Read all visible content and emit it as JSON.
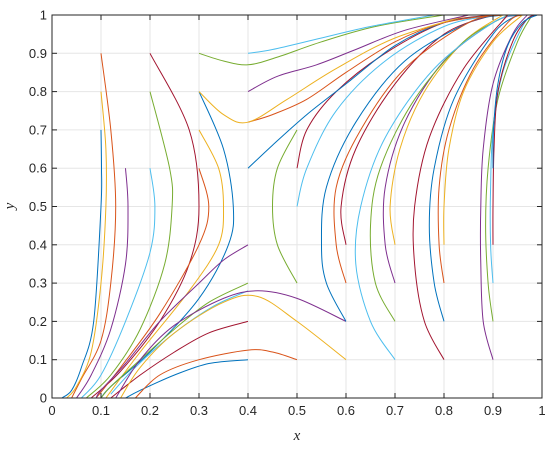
{
  "chart_data": {
    "type": "line",
    "title": "",
    "xlabel": "x",
    "ylabel": "y",
    "xlim": [
      0,
      1
    ],
    "ylim": [
      0,
      1
    ],
    "grid": true,
    "legend": "none",
    "x_ticks": [
      "0",
      "0.1",
      "0.2",
      "0.3",
      "0.4",
      "0.5",
      "0.6",
      "0.7",
      "0.8",
      "0.9",
      "1"
    ],
    "y_ticks": [
      "0",
      "0.1",
      "0.2",
      "0.3",
      "0.4",
      "0.5",
      "0.6",
      "0.7",
      "0.8",
      "0.9",
      "1"
    ],
    "colors": [
      "#0072BD",
      "#D95319",
      "#EDB120",
      "#7E2F8E",
      "#77AC30",
      "#4DBEEE",
      "#A2142F"
    ],
    "series": [
      {
        "values": [
          [
            0.1,
            0.7
          ],
          [
            0.101,
            0.6
          ],
          [
            0.1,
            0.5
          ],
          [
            0.085,
            0.2
          ],
          [
            0.06,
            0.08
          ],
          [
            0.04,
            0.02
          ],
          [
            0.02,
            0.0
          ]
        ]
      },
      {
        "values": [
          [
            0.1,
            0.9
          ],
          [
            0.12,
            0.7
          ],
          [
            0.13,
            0.5
          ],
          [
            0.12,
            0.3
          ],
          [
            0.1,
            0.15
          ],
          [
            0.06,
            0.05
          ],
          [
            0.04,
            0.0
          ]
        ]
      },
      {
        "values": [
          [
            0.1,
            0.8
          ],
          [
            0.11,
            0.65
          ],
          [
            0.11,
            0.5
          ],
          [
            0.1,
            0.3
          ],
          [
            0.08,
            0.12
          ],
          [
            0.05,
            0.03
          ],
          [
            0.03,
            0.0
          ]
        ]
      },
      {
        "values": [
          [
            0.15,
            0.6
          ],
          [
            0.155,
            0.5
          ],
          [
            0.15,
            0.35
          ],
          [
            0.12,
            0.18
          ],
          [
            0.08,
            0.06
          ],
          [
            0.05,
            0.0
          ]
        ]
      },
      {
        "values": [
          [
            0.2,
            0.8
          ],
          [
            0.24,
            0.6
          ],
          [
            0.245,
            0.5
          ],
          [
            0.23,
            0.35
          ],
          [
            0.18,
            0.18
          ],
          [
            0.12,
            0.06
          ],
          [
            0.07,
            0.0
          ]
        ]
      },
      {
        "values": [
          [
            0.2,
            0.6
          ],
          [
            0.21,
            0.5
          ],
          [
            0.2,
            0.38
          ],
          [
            0.15,
            0.2
          ],
          [
            0.1,
            0.06
          ],
          [
            0.06,
            0.0
          ]
        ]
      },
      {
        "values": [
          [
            0.2,
            0.9
          ],
          [
            0.28,
            0.7
          ],
          [
            0.3,
            0.5
          ],
          [
            0.28,
            0.35
          ],
          [
            0.22,
            0.2
          ],
          [
            0.14,
            0.07
          ],
          [
            0.08,
            0.0
          ]
        ]
      },
      {
        "values": [
          [
            0.3,
            0.8
          ],
          [
            0.35,
            0.65
          ],
          [
            0.37,
            0.5
          ],
          [
            0.36,
            0.4
          ],
          [
            0.3,
            0.26
          ],
          [
            0.2,
            0.12
          ],
          [
            0.12,
            0.03
          ],
          [
            0.1,
            0.0
          ]
        ]
      },
      {
        "values": [
          [
            0.3,
            0.6
          ],
          [
            0.32,
            0.5
          ],
          [
            0.3,
            0.4
          ],
          [
            0.22,
            0.22
          ],
          [
            0.14,
            0.08
          ],
          [
            0.09,
            0.0
          ]
        ]
      },
      {
        "values": [
          [
            0.3,
            0.7
          ],
          [
            0.34,
            0.6
          ],
          [
            0.35,
            0.5
          ],
          [
            0.34,
            0.4
          ],
          [
            0.28,
            0.28
          ],
          [
            0.18,
            0.12
          ],
          [
            0.11,
            0.0
          ]
        ]
      },
      {
        "values": [
          [
            0.4,
            0.4
          ],
          [
            0.35,
            0.36
          ],
          [
            0.3,
            0.3
          ],
          [
            0.22,
            0.2
          ],
          [
            0.15,
            0.09
          ],
          [
            0.1,
            0.02
          ],
          [
            0.09,
            0.0
          ]
        ]
      },
      {
        "values": [
          [
            0.4,
            0.3
          ],
          [
            0.32,
            0.25
          ],
          [
            0.25,
            0.18
          ],
          [
            0.18,
            0.1
          ],
          [
            0.12,
            0.03
          ],
          [
            0.1,
            0.0
          ]
        ]
      },
      {
        "values": [
          [
            0.4,
            0.28
          ],
          [
            0.33,
            0.24
          ],
          [
            0.25,
            0.17
          ],
          [
            0.17,
            0.08
          ],
          [
            0.12,
            0.01
          ]
        ]
      },
      {
        "values": [
          [
            0.4,
            0.2
          ],
          [
            0.32,
            0.17
          ],
          [
            0.25,
            0.12
          ],
          [
            0.18,
            0.06
          ],
          [
            0.12,
            0.0
          ]
        ]
      },
      {
        "values": [
          [
            0.4,
            0.1
          ],
          [
            0.32,
            0.09
          ],
          [
            0.25,
            0.06
          ],
          [
            0.18,
            0.02
          ],
          [
            0.15,
            0.0
          ]
        ]
      },
      {
        "values": [
          [
            0.5,
            0.1
          ],
          [
            0.45,
            0.12
          ],
          [
            0.4,
            0.125
          ],
          [
            0.3,
            0.1
          ],
          [
            0.22,
            0.06
          ],
          [
            0.17,
            0.0
          ]
        ]
      },
      {
        "values": [
          [
            0.6,
            0.1
          ],
          [
            0.5,
            0.2
          ],
          [
            0.42,
            0.265
          ],
          [
            0.35,
            0.25
          ],
          [
            0.25,
            0.17
          ],
          [
            0.18,
            0.08
          ],
          [
            0.14,
            0.0
          ]
        ]
      },
      {
        "values": [
          [
            0.6,
            0.2
          ],
          [
            0.5,
            0.26
          ],
          [
            0.42,
            0.28
          ],
          [
            0.35,
            0.26
          ],
          [
            0.25,
            0.19
          ],
          [
            0.18,
            0.1
          ],
          [
            0.13,
            0.0
          ]
        ]
      },
      {
        "values": [
          [
            0.5,
            0.3
          ],
          [
            0.46,
            0.4
          ],
          [
            0.45,
            0.5
          ],
          [
            0.46,
            0.6
          ],
          [
            0.5,
            0.7
          ]
        ]
      },
      {
        "values": [
          [
            0.5,
            0.5
          ],
          [
            0.52,
            0.6
          ],
          [
            0.58,
            0.75
          ],
          [
            0.68,
            0.88
          ],
          [
            0.8,
            0.97
          ],
          [
            0.9,
            1.0
          ]
        ]
      },
      {
        "values": [
          [
            0.5,
            0.6
          ],
          [
            0.52,
            0.7
          ],
          [
            0.58,
            0.8
          ],
          [
            0.68,
            0.9
          ],
          [
            0.8,
            0.98
          ],
          [
            0.9,
            1.0
          ]
        ]
      },
      {
        "values": [
          [
            0.4,
            0.6
          ],
          [
            0.45,
            0.66
          ],
          [
            0.52,
            0.74
          ],
          [
            0.6,
            0.82
          ],
          [
            0.7,
            0.92
          ],
          [
            0.8,
            0.98
          ],
          [
            0.9,
            1.0
          ]
        ]
      },
      {
        "values": [
          [
            0.4,
            0.72
          ],
          [
            0.45,
            0.74
          ],
          [
            0.52,
            0.78
          ],
          [
            0.6,
            0.85
          ],
          [
            0.7,
            0.93
          ],
          [
            0.8,
            0.98
          ],
          [
            0.9,
            1.0
          ]
        ]
      },
      {
        "values": [
          [
            0.3,
            0.8
          ],
          [
            0.35,
            0.74
          ],
          [
            0.4,
            0.72
          ],
          [
            0.48,
            0.78
          ],
          [
            0.58,
            0.86
          ],
          [
            0.7,
            0.94
          ],
          [
            0.85,
            1.0
          ]
        ]
      },
      {
        "values": [
          [
            0.4,
            0.8
          ],
          [
            0.46,
            0.84
          ],
          [
            0.54,
            0.87
          ],
          [
            0.62,
            0.91
          ],
          [
            0.72,
            0.96
          ],
          [
            0.85,
            1.0
          ]
        ]
      },
      {
        "values": [
          [
            0.3,
            0.9
          ],
          [
            0.35,
            0.88
          ],
          [
            0.4,
            0.87
          ],
          [
            0.46,
            0.89
          ],
          [
            0.55,
            0.93
          ],
          [
            0.66,
            0.97
          ],
          [
            0.8,
            1.0
          ]
        ]
      },
      {
        "values": [
          [
            0.4,
            0.9
          ],
          [
            0.45,
            0.91
          ],
          [
            0.55,
            0.94
          ],
          [
            0.65,
            0.97
          ],
          [
            0.78,
            1.0
          ]
        ]
      },
      {
        "values": [
          [
            0.6,
            0.4
          ],
          [
            0.59,
            0.5
          ],
          [
            0.62,
            0.65
          ],
          [
            0.7,
            0.82
          ],
          [
            0.8,
            0.95
          ],
          [
            0.9,
            1.0
          ]
        ]
      },
      {
        "values": [
          [
            0.6,
            0.2
          ],
          [
            0.56,
            0.3
          ],
          [
            0.55,
            0.4
          ],
          [
            0.56,
            0.55
          ],
          [
            0.62,
            0.72
          ],
          [
            0.72,
            0.88
          ],
          [
            0.85,
            0.98
          ],
          [
            0.92,
            1.0
          ]
        ]
      },
      {
        "values": [
          [
            0.6,
            0.3
          ],
          [
            0.58,
            0.4
          ],
          [
            0.58,
            0.55
          ],
          [
            0.63,
            0.7
          ],
          [
            0.72,
            0.86
          ],
          [
            0.85,
            0.98
          ],
          [
            0.92,
            1.0
          ]
        ]
      },
      {
        "values": [
          [
            0.7,
            0.4
          ],
          [
            0.69,
            0.5
          ],
          [
            0.71,
            0.65
          ],
          [
            0.76,
            0.8
          ],
          [
            0.84,
            0.93
          ],
          [
            0.92,
            1.0
          ]
        ]
      },
      {
        "values": [
          [
            0.7,
            0.3
          ],
          [
            0.68,
            0.4
          ],
          [
            0.68,
            0.55
          ],
          [
            0.72,
            0.72
          ],
          [
            0.8,
            0.88
          ],
          [
            0.9,
            0.98
          ],
          [
            0.95,
            1.0
          ]
        ]
      },
      {
        "values": [
          [
            0.7,
            0.2
          ],
          [
            0.66,
            0.3
          ],
          [
            0.65,
            0.45
          ],
          [
            0.67,
            0.6
          ],
          [
            0.74,
            0.78
          ],
          [
            0.84,
            0.93
          ],
          [
            0.93,
            1.0
          ]
        ]
      },
      {
        "values": [
          [
            0.7,
            0.1
          ],
          [
            0.65,
            0.2
          ],
          [
            0.62,
            0.35
          ],
          [
            0.63,
            0.5
          ],
          [
            0.68,
            0.68
          ],
          [
            0.78,
            0.86
          ],
          [
            0.9,
            0.98
          ],
          [
            0.95,
            1.0
          ]
        ]
      },
      {
        "values": [
          [
            0.8,
            0.1
          ],
          [
            0.76,
            0.2
          ],
          [
            0.74,
            0.35
          ],
          [
            0.74,
            0.5
          ],
          [
            0.77,
            0.68
          ],
          [
            0.84,
            0.86
          ],
          [
            0.93,
            1.0
          ]
        ]
      },
      {
        "values": [
          [
            0.8,
            0.2
          ],
          [
            0.78,
            0.3
          ],
          [
            0.77,
            0.45
          ],
          [
            0.78,
            0.6
          ],
          [
            0.82,
            0.78
          ],
          [
            0.9,
            0.95
          ],
          [
            0.95,
            1.0
          ]
        ]
      },
      {
        "values": [
          [
            0.8,
            0.3
          ],
          [
            0.79,
            0.4
          ],
          [
            0.79,
            0.55
          ],
          [
            0.81,
            0.7
          ],
          [
            0.86,
            0.86
          ],
          [
            0.93,
            0.98
          ],
          [
            0.96,
            1.0
          ]
        ]
      },
      {
        "values": [
          [
            0.8,
            0.4
          ],
          [
            0.8,
            0.5
          ],
          [
            0.81,
            0.65
          ],
          [
            0.84,
            0.8
          ],
          [
            0.9,
            0.93
          ],
          [
            0.96,
            1.0
          ]
        ]
      },
      {
        "values": [
          [
            0.9,
            0.1
          ],
          [
            0.88,
            0.2
          ],
          [
            0.875,
            0.35
          ],
          [
            0.875,
            0.5
          ],
          [
            0.88,
            0.65
          ],
          [
            0.9,
            0.82
          ],
          [
            0.94,
            0.95
          ],
          [
            0.97,
            1.0
          ]
        ]
      },
      {
        "values": [
          [
            0.9,
            0.2
          ],
          [
            0.89,
            0.3
          ],
          [
            0.885,
            0.45
          ],
          [
            0.89,
            0.6
          ],
          [
            0.91,
            0.78
          ],
          [
            0.95,
            0.93
          ],
          [
            0.98,
            1.0
          ]
        ]
      },
      {
        "values": [
          [
            0.9,
            0.3
          ],
          [
            0.895,
            0.4
          ],
          [
            0.895,
            0.55
          ],
          [
            0.9,
            0.7
          ],
          [
            0.92,
            0.85
          ],
          [
            0.96,
            0.97
          ],
          [
            0.98,
            1.0
          ]
        ]
      },
      {
        "values": [
          [
            0.9,
            0.4
          ],
          [
            0.9,
            0.5
          ],
          [
            0.902,
            0.65
          ],
          [
            0.91,
            0.8
          ],
          [
            0.94,
            0.93
          ],
          [
            0.97,
            0.99
          ],
          [
            0.99,
            1.0
          ]
        ]
      },
      {
        "values": [
          [
            0.9,
            0.6
          ],
          [
            0.901,
            0.7
          ],
          [
            0.91,
            0.82
          ],
          [
            0.93,
            0.92
          ],
          [
            0.96,
            0.98
          ],
          [
            0.99,
            1.0
          ]
        ]
      }
    ]
  }
}
